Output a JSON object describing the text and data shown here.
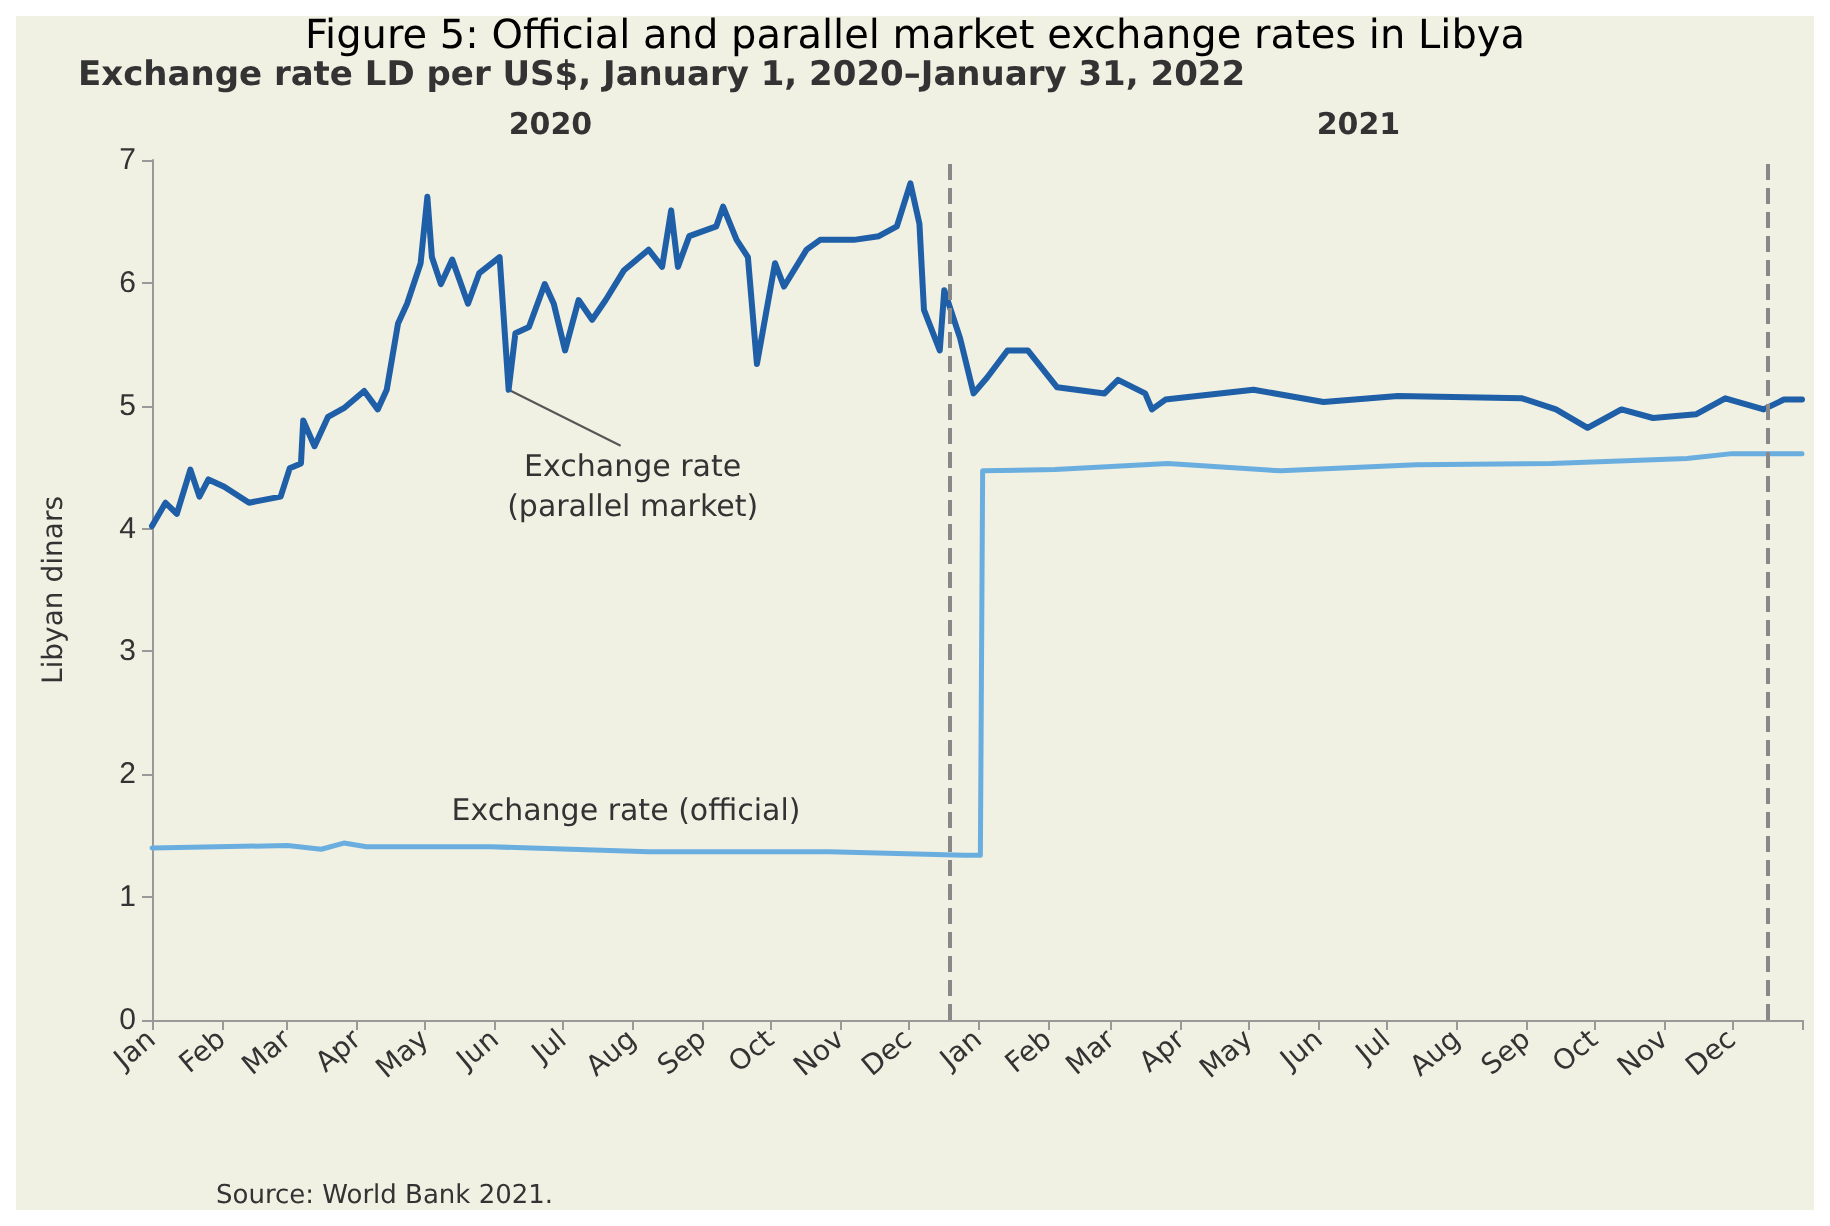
{
  "chart_data": {
    "type": "line",
    "title": "Figure 5: Official and parallel market exchange rates in Libya",
    "subtitle": "Exchange rate LD per US$, January 1, 2020–January 31, 2022",
    "ylabel": "Libyan dinars",
    "marker": "none",
    "series": [
      {
        "color": "#1f5fa8",
        "x": [
          "2020-01-01",
          "2020-01-07",
          "2020-01-12",
          "2020-01-18",
          "2020-01-22",
          "2020-01-26",
          "2020-02-02",
          "2020-02-13",
          "2020-02-27",
          "2020-03-02",
          "2020-03-07",
          "2020-03-08",
          "2020-03-13",
          "2020-03-19",
          "2020-03-26",
          "2020-04-04",
          "2020-04-10",
          "2020-04-14",
          "2020-04-19",
          "2020-04-23",
          "2020-04-29",
          "2020-05-02",
          "2020-05-04",
          "2020-05-08",
          "2020-05-13",
          "2020-05-20",
          "2020-05-25",
          "2020-06-03",
          "2020-06-07",
          "2020-06-10",
          "2020-06-16",
          "2020-06-23",
          "2020-06-27",
          "2020-07-02",
          "2020-07-08",
          "2020-07-14",
          "2020-07-20",
          "2020-07-28",
          "2020-08-08",
          "2020-08-14",
          "2020-08-18",
          "2020-08-21",
          "2020-08-26",
          "2020-09-07",
          "2020-09-10",
          "2020-09-16",
          "2020-09-21",
          "2020-09-25",
          "2020-10-03",
          "2020-10-07",
          "2020-10-17",
          "2020-10-23",
          "2020-11-07",
          "2020-11-18",
          "2020-11-26",
          "2020-12-02",
          "2020-12-06",
          "2020-12-08",
          "2020-12-15",
          "2020-12-17",
          "2020-12-24",
          "2020-12-30",
          "2021-01-05",
          "2021-01-14",
          "2021-01-23",
          "2021-02-05",
          "2021-02-26",
          "2021-03-04",
          "2021-03-16",
          "2021-03-19",
          "2021-03-25",
          "2021-05-03",
          "2021-06-03",
          "2021-07-06",
          "2021-08-30",
          "2021-09-14",
          "2021-09-28",
          "2021-10-13",
          "2021-10-27",
          "2021-11-15",
          "2021-11-28",
          "2021-12-15",
          "2021-12-24",
          "2022-01-01"
        ],
        "values": [
          4.02,
          4.21,
          4.12,
          4.48,
          4.26,
          4.4,
          4.34,
          4.21,
          4.26,
          4.49,
          4.53,
          4.88,
          4.67,
          4.91,
          4.98,
          5.12,
          4.97,
          5.13,
          5.67,
          5.83,
          6.16,
          6.7,
          6.21,
          5.99,
          6.19,
          5.83,
          6.08,
          6.21,
          5.13,
          5.59,
          5.64,
          5.99,
          5.83,
          5.45,
          5.86,
          5.7,
          5.86,
          6.1,
          6.27,
          6.13,
          6.59,
          6.13,
          6.38,
          6.46,
          6.62,
          6.35,
          6.21,
          5.34,
          6.16,
          5.97,
          6.27,
          6.35,
          6.35,
          6.38,
          6.46,
          6.81,
          6.48,
          5.78,
          5.45,
          5.94,
          5.55,
          5.1,
          5.23,
          5.45,
          5.45,
          5.15,
          5.1,
          5.21,
          5.1,
          4.97,
          5.05,
          5.13,
          5.03,
          5.08,
          5.06,
          4.97,
          4.82,
          4.97,
          4.9,
          4.93,
          5.06,
          4.97,
          5.05,
          5.05
        ]
      },
      {
        "color": "#6aaee0",
        "x": [
          "2020-01-01",
          "2020-03-01",
          "2020-03-16",
          "2020-03-26",
          "2020-04-05",
          "2020-05-30",
          "2020-08-08",
          "2020-10-27",
          "2020-12-26",
          "2021-01-02",
          "2021-01-03",
          "2021-02-04",
          "2021-03-26",
          "2021-05-15",
          "2021-07-14",
          "2021-09-12",
          "2021-11-11",
          "2021-12-01",
          "2022-01-01"
        ],
        "values": [
          1.4,
          1.42,
          1.39,
          1.44,
          1.41,
          1.41,
          1.37,
          1.37,
          1.34,
          1.34,
          4.47,
          4.48,
          4.53,
          4.47,
          4.52,
          4.53,
          4.57,
          4.61,
          4.61
        ]
      }
    ],
    "xlim": [
      "2020-01-01",
      "2022-01-01"
    ],
    "xticks": [
      {
        "value": "2020-01-01",
        "label": "Jan"
      },
      {
        "value": "2020-02-01",
        "label": "Feb"
      },
      {
        "value": "2020-03-01",
        "label": "Mar"
      },
      {
        "value": "2020-04-01",
        "label": "Apr"
      },
      {
        "value": "2020-05-01",
        "label": "May"
      },
      {
        "value": "2020-06-01",
        "label": "Jun"
      },
      {
        "value": "2020-07-01",
        "label": "Jul"
      },
      {
        "value": "2020-08-01",
        "label": "Aug"
      },
      {
        "value": "2020-09-01",
        "label": "Sep"
      },
      {
        "value": "2020-10-01",
        "label": "Oct"
      },
      {
        "value": "2020-11-01",
        "label": "Nov"
      },
      {
        "value": "2020-12-01",
        "label": "Dec"
      },
      {
        "value": "2021-01-01",
        "label": "Jan"
      },
      {
        "value": "2021-02-01",
        "label": "Feb"
      },
      {
        "value": "2021-03-01",
        "label": "Mar"
      },
      {
        "value": "2021-04-01",
        "label": "Apr"
      },
      {
        "value": "2021-05-01",
        "label": "May"
      },
      {
        "value": "2021-06-01",
        "label": "Jun"
      },
      {
        "value": "2021-07-01",
        "label": "Jul"
      },
      {
        "value": "2021-08-01",
        "label": "Aug"
      },
      {
        "value": "2021-09-01",
        "label": "Sep"
      },
      {
        "value": "2021-10-01",
        "label": "Oct"
      },
      {
        "value": "2021-11-01",
        "label": "Nov"
      },
      {
        "value": "2021-12-01",
        "label": "Dec"
      },
      {
        "value": "2022-01-01",
        "label": null
      }
    ],
    "ylim": [
      0,
      7
    ],
    "yticks": [
      0,
      1,
      2,
      3,
      4,
      5,
      6,
      7
    ],
    "grid": false,
    "ref_lines": [
      {
        "axis": "x",
        "value": "2020-12-19",
        "color": "#888888",
        "line_style": "dashed"
      },
      {
        "axis": "x",
        "value": "2021-12-17",
        "color": "#888888",
        "line_style": "dashed"
      }
    ],
    "annotations": [
      "2020",
      "2021",
      {
        "text": "Exchange rate\n(parallel market)",
        "x": "2020-06-07",
        "y": 5.13
      },
      "Exchange rate (official)",
      "Source: World Bank 2021."
    ]
  }
}
